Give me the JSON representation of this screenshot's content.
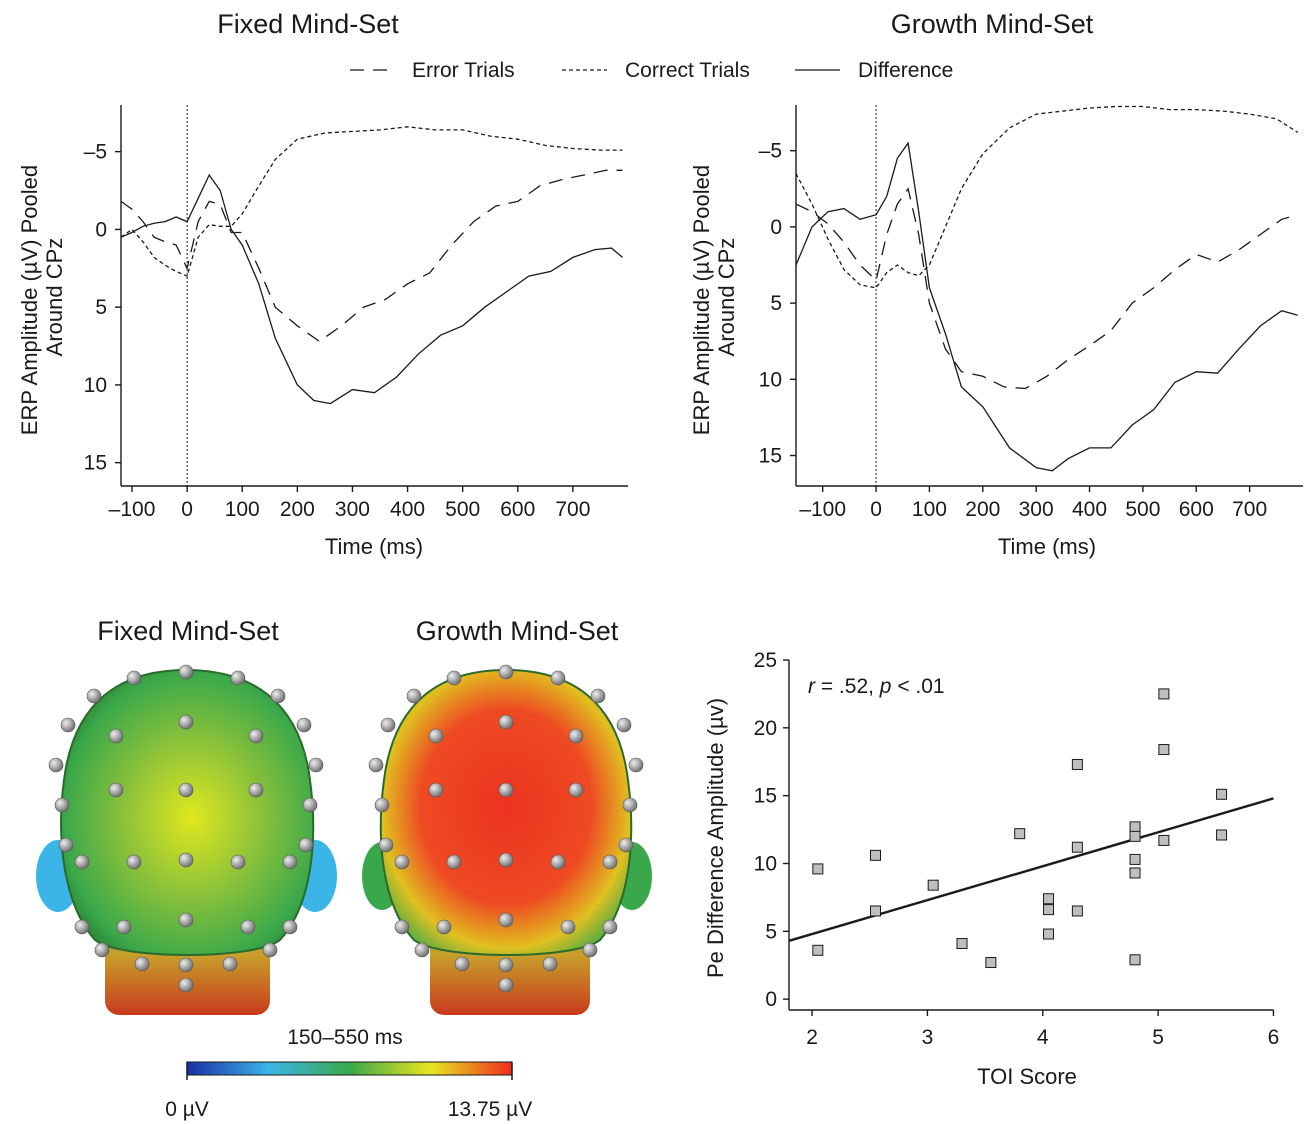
{
  "legend": {
    "items": [
      {
        "label": "Error Trials",
        "dash": "14,9"
      },
      {
        "label": "Correct Trials",
        "dash": "4,3"
      },
      {
        "label": "Difference",
        "dash": ""
      }
    ]
  },
  "chart_data": [
    {
      "type": "line",
      "title": "Fixed Mind-Set",
      "xlabel": "Time (ms)",
      "ylabel": "ERP Amplitude (µV) Pooled\nAround CPz",
      "xlim": [
        -120,
        800
      ],
      "ylim": [
        -8,
        16.5
      ],
      "y_inverted": true,
      "xticks": [
        -100,
        0,
        100,
        200,
        300,
        400,
        500,
        600,
        700
      ],
      "xtick_labels": [
        "–100",
        "0",
        "100",
        "200",
        "300",
        "400",
        "500",
        "600",
        "700"
      ],
      "yticks": [
        -5,
        0,
        5,
        10,
        15
      ],
      "ytick_labels": [
        "–5",
        "0",
        "5",
        "10",
        "15"
      ],
      "zero_line": true,
      "series": [
        {
          "name": "Error Trials",
          "style": "dashed",
          "x": [
            -120,
            -100,
            -80,
            -60,
            -40,
            -20,
            0,
            20,
            40,
            60,
            80,
            100,
            130,
            160,
            200,
            240,
            280,
            320,
            360,
            400,
            440,
            480,
            520,
            560,
            600,
            640,
            680,
            720,
            760,
            790
          ],
          "y": [
            -1.8,
            -1.3,
            -0.5,
            0.5,
            0.8,
            1.0,
            2.5,
            -0.5,
            -1.8,
            -1.6,
            0.2,
            0.2,
            2.5,
            5.0,
            6.2,
            7.2,
            6.2,
            5.0,
            4.5,
            3.5,
            2.8,
            1.0,
            -0.5,
            -1.5,
            -1.8,
            -2.8,
            -3.2,
            -3.5,
            -3.8,
            -3.8
          ]
        },
        {
          "name": "Correct Trials",
          "style": "dotted",
          "x": [
            -120,
            -100,
            -80,
            -60,
            -40,
            -20,
            0,
            20,
            40,
            60,
            80,
            100,
            130,
            160,
            200,
            250,
            300,
            350,
            400,
            450,
            500,
            550,
            600,
            650,
            700,
            750,
            790
          ],
          "y": [
            0.5,
            0.0,
            0.8,
            1.8,
            2.3,
            2.7,
            3.0,
            0.5,
            -0.3,
            -0.2,
            -0.2,
            -1.0,
            -2.8,
            -4.5,
            -5.8,
            -6.2,
            -6.3,
            -6.4,
            -6.6,
            -6.4,
            -6.4,
            -6.0,
            -5.8,
            -5.4,
            -5.2,
            -5.1,
            -5.1
          ]
        },
        {
          "name": "Difference",
          "style": "solid",
          "x": [
            -120,
            -100,
            -80,
            -60,
            -40,
            -20,
            0,
            20,
            40,
            60,
            80,
            100,
            130,
            160,
            200,
            230,
            260,
            300,
            340,
            380,
            420,
            460,
            500,
            540,
            580,
            620,
            660,
            700,
            740,
            770,
            790
          ],
          "y": [
            0.5,
            0.2,
            -0.2,
            -0.4,
            -0.5,
            -0.8,
            -0.5,
            -2.0,
            -3.5,
            -2.5,
            0.0,
            1.0,
            3.5,
            7.0,
            10.0,
            11.0,
            11.2,
            10.3,
            10.5,
            9.5,
            8.0,
            6.8,
            6.2,
            5.0,
            4.0,
            3.0,
            2.7,
            1.8,
            1.3,
            1.2,
            1.8
          ]
        }
      ]
    },
    {
      "type": "line",
      "title": "Growth Mind-Set",
      "xlabel": "Time (ms)",
      "ylabel": "ERP Amplitude (µV) Pooled\nAround CPz",
      "xlim": [
        -150,
        800
      ],
      "ylim": [
        -8,
        17
      ],
      "y_inverted": true,
      "xticks": [
        -100,
        0,
        100,
        200,
        300,
        400,
        500,
        600,
        700
      ],
      "xtick_labels": [
        "–100",
        "0",
        "100",
        "200",
        "300",
        "400",
        "500",
        "600",
        "700"
      ],
      "yticks": [
        -5,
        0,
        5,
        10,
        15
      ],
      "ytick_labels": [
        "–5",
        "0",
        "5",
        "10",
        "15"
      ],
      "zero_line": true,
      "series": [
        {
          "name": "Error Trials",
          "style": "dashed",
          "x": [
            -150,
            -120,
            -90,
            -60,
            -30,
            0,
            20,
            40,
            60,
            80,
            100,
            130,
            160,
            200,
            240,
            280,
            320,
            360,
            400,
            440,
            480,
            520,
            560,
            600,
            640,
            680,
            720,
            760,
            790
          ],
          "y": [
            -1.5,
            -1.0,
            -0.2,
            1.0,
            2.5,
            3.5,
            0.5,
            -1.5,
            -2.5,
            0.5,
            5.0,
            8.0,
            9.5,
            9.8,
            10.5,
            10.6,
            9.8,
            8.7,
            7.8,
            6.8,
            5.0,
            4.0,
            2.8,
            1.8,
            2.3,
            1.5,
            0.5,
            -0.5,
            -0.8
          ]
        },
        {
          "name": "Correct Trials",
          "style": "dotted",
          "x": [
            -150,
            -120,
            -90,
            -60,
            -30,
            0,
            20,
            40,
            60,
            80,
            100,
            130,
            160,
            200,
            250,
            300,
            350,
            400,
            450,
            500,
            550,
            600,
            650,
            700,
            750,
            790
          ],
          "y": [
            -3.5,
            -1.5,
            0.8,
            2.8,
            3.8,
            4.0,
            3.0,
            2.5,
            3.0,
            3.2,
            2.5,
            0.0,
            -2.5,
            -4.8,
            -6.5,
            -7.4,
            -7.6,
            -7.8,
            -7.9,
            -7.9,
            -7.7,
            -7.7,
            -7.6,
            -7.4,
            -7.1,
            -6.2
          ]
        },
        {
          "name": "Difference",
          "style": "solid",
          "x": [
            -150,
            -120,
            -90,
            -60,
            -30,
            0,
            20,
            40,
            60,
            80,
            100,
            130,
            160,
            200,
            250,
            300,
            330,
            360,
            400,
            440,
            480,
            520,
            560,
            600,
            640,
            680,
            720,
            760,
            790
          ],
          "y": [
            2.5,
            0.0,
            -1.0,
            -1.2,
            -0.5,
            -0.8,
            -2.0,
            -4.5,
            -5.5,
            -1.0,
            4.0,
            7.0,
            10.5,
            11.8,
            14.5,
            15.8,
            16.0,
            15.2,
            14.5,
            14.5,
            13.0,
            12.0,
            10.2,
            9.5,
            9.6,
            8.0,
            6.5,
            5.5,
            5.8
          ]
        }
      ]
    },
    {
      "type": "scatter",
      "xlabel": "TOI Score",
      "ylabel": "Pe Difference Amplitude (µv)",
      "annotation_parts": [
        {
          "text": "r",
          "italic": true
        },
        {
          "text": " = .52, ",
          "italic": false
        },
        {
          "text": "p",
          "italic": true
        },
        {
          "text": " < .01",
          "italic": false
        }
      ],
      "xlim": [
        1.8,
        6.1
      ],
      "ylim": [
        -0.8,
        25
      ],
      "xticks": [
        2,
        3,
        4,
        5,
        6
      ],
      "xtick_labels": [
        "2",
        "3",
        "4",
        "5",
        "6"
      ],
      "yticks": [
        0,
        5,
        10,
        15,
        20,
        25
      ],
      "ytick_labels": [
        "0",
        "5",
        "10",
        "15",
        "20",
        "25"
      ],
      "points": [
        [
          2.05,
          9.6
        ],
        [
          2.05,
          3.6
        ],
        [
          2.55,
          10.6
        ],
        [
          2.55,
          6.5
        ],
        [
          3.05,
          8.4
        ],
        [
          3.3,
          4.1
        ],
        [
          3.55,
          2.7
        ],
        [
          3.8,
          12.2
        ],
        [
          4.05,
          7.4
        ],
        [
          4.05,
          6.6
        ],
        [
          4.05,
          4.8
        ],
        [
          4.3,
          17.3
        ],
        [
          4.3,
          11.2
        ],
        [
          4.3,
          6.5
        ],
        [
          4.8,
          12.7
        ],
        [
          4.8,
          12.0
        ],
        [
          4.8,
          10.3
        ],
        [
          4.8,
          9.3
        ],
        [
          4.8,
          2.9
        ],
        [
          5.05,
          22.5
        ],
        [
          5.05,
          18.4
        ],
        [
          5.05,
          11.7
        ],
        [
          5.55,
          15.1
        ],
        [
          5.55,
          12.1
        ]
      ],
      "fit_line": {
        "x": [
          1.8,
          6.0
        ],
        "y": [
          4.3,
          14.8
        ]
      }
    }
  ],
  "topomap": {
    "titles": [
      "Fixed Mind-Set",
      "Growth Mind-Set"
    ],
    "window_label": "150–550 ms",
    "scale_min_label": "0 µV",
    "scale_max_label": "13.75 µV",
    "colormap": [
      "#1a2ea8",
      "#3bb5e8",
      "#3aa84a",
      "#e8e61e",
      "#ef2b1e"
    ],
    "head_center_color": [
      "#e0e81e",
      "#ec3320"
    ]
  }
}
